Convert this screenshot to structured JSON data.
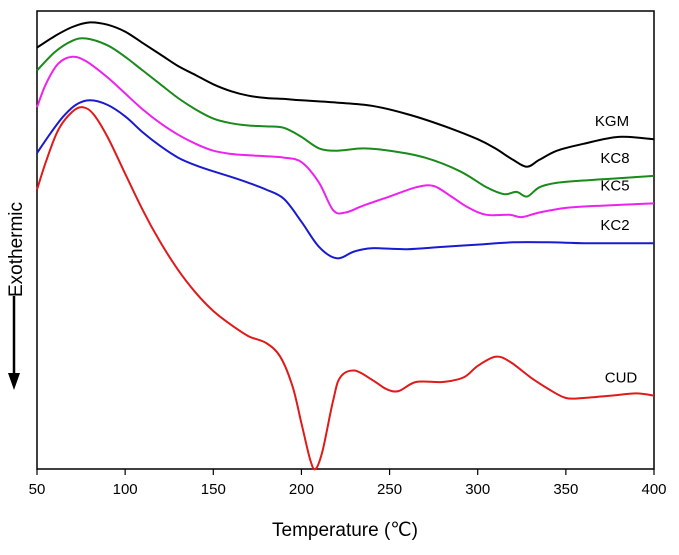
{
  "chart_data": {
    "type": "line",
    "xlabel": "Temperature (℃)",
    "ylabel": "Exothermic",
    "xlim": [
      50,
      400
    ],
    "x_ticks": [
      "50",
      "100",
      "150",
      "200",
      "250",
      "300",
      "350",
      "400"
    ],
    "y_ticks_shown": false,
    "grid": false,
    "legend": "labels placed at right end of curves",
    "y_units": "relative heat flow (arbitrary units, plot frame spans 0–100)",
    "ylim": [
      0,
      100
    ],
    "series": [
      {
        "name": "KGM",
        "color": "#000000",
        "points": [
          [
            50,
            92
          ],
          [
            60,
            94.5
          ],
          [
            70,
            96.5
          ],
          [
            80,
            97.5
          ],
          [
            90,
            97
          ],
          [
            100,
            95.5
          ],
          [
            110,
            93
          ],
          [
            120,
            90.5
          ],
          [
            130,
            88
          ],
          [
            140,
            86
          ],
          [
            150,
            84
          ],
          [
            160,
            82.5
          ],
          [
            170,
            81.5
          ],
          [
            180,
            81
          ],
          [
            190,
            80.8
          ],
          [
            200,
            80.5
          ],
          [
            220,
            80
          ],
          [
            240,
            79.3
          ],
          [
            260,
            77.5
          ],
          [
            280,
            75
          ],
          [
            300,
            72
          ],
          [
            310,
            70
          ],
          [
            320,
            67.5
          ],
          [
            328,
            66
          ],
          [
            335,
            67.5
          ],
          [
            345,
            69.5
          ],
          [
            360,
            71
          ],
          [
            380,
            72.5
          ],
          [
            400,
            72
          ]
        ]
      },
      {
        "name": "KC8",
        "color": "#1a8a1a",
        "points": [
          [
            50,
            87
          ],
          [
            60,
            91
          ],
          [
            70,
            93.5
          ],
          [
            78,
            94
          ],
          [
            90,
            92.5
          ],
          [
            100,
            90
          ],
          [
            110,
            87
          ],
          [
            120,
            84
          ],
          [
            130,
            81
          ],
          [
            140,
            78.5
          ],
          [
            150,
            76.5
          ],
          [
            160,
            75.5
          ],
          [
            170,
            75
          ],
          [
            180,
            74.8
          ],
          [
            190,
            74.5
          ],
          [
            200,
            72.5
          ],
          [
            210,
            70
          ],
          [
            220,
            69.5
          ],
          [
            235,
            70
          ],
          [
            250,
            69.5
          ],
          [
            270,
            68
          ],
          [
            290,
            65
          ],
          [
            305,
            61.5
          ],
          [
            315,
            60
          ],
          [
            322,
            60.5
          ],
          [
            328,
            59.5
          ],
          [
            335,
            61.5
          ],
          [
            345,
            62.5
          ],
          [
            360,
            63
          ],
          [
            380,
            63.5
          ],
          [
            400,
            64
          ]
        ]
      },
      {
        "name": "KC5",
        "color": "#ee22ee",
        "points": [
          [
            50,
            79
          ],
          [
            55,
            84
          ],
          [
            62,
            88.5
          ],
          [
            70,
            90
          ],
          [
            78,
            89
          ],
          [
            90,
            85.5
          ],
          [
            100,
            82
          ],
          [
            110,
            78.5
          ],
          [
            120,
            75.5
          ],
          [
            130,
            73
          ],
          [
            140,
            71
          ],
          [
            150,
            69.5
          ],
          [
            160,
            68.8
          ],
          [
            170,
            68.5
          ],
          [
            180,
            68.3
          ],
          [
            190,
            68
          ],
          [
            200,
            67
          ],
          [
            210,
            62.5
          ],
          [
            218,
            56.5
          ],
          [
            225,
            56
          ],
          [
            235,
            57.5
          ],
          [
            250,
            59.5
          ],
          [
            265,
            61.5
          ],
          [
            275,
            61.8
          ],
          [
            285,
            59.5
          ],
          [
            295,
            57
          ],
          [
            305,
            55.5
          ],
          [
            318,
            55.5
          ],
          [
            325,
            55
          ],
          [
            335,
            56
          ],
          [
            350,
            57
          ],
          [
            370,
            57.5
          ],
          [
            400,
            58
          ]
        ]
      },
      {
        "name": "KC2",
        "color": "#1a1ad0",
        "points": [
          [
            50,
            69
          ],
          [
            58,
            73.5
          ],
          [
            65,
            77
          ],
          [
            72,
            79.5
          ],
          [
            80,
            80.5
          ],
          [
            90,
            79.5
          ],
          [
            100,
            77
          ],
          [
            110,
            73.5
          ],
          [
            120,
            70.5
          ],
          [
            130,
            68
          ],
          [
            140,
            66.3
          ],
          [
            150,
            65
          ],
          [
            160,
            63.8
          ],
          [
            170,
            62.5
          ],
          [
            180,
            61
          ],
          [
            190,
            59
          ],
          [
            200,
            54
          ],
          [
            210,
            48.5
          ],
          [
            220,
            46
          ],
          [
            230,
            47.5
          ],
          [
            240,
            48.2
          ],
          [
            260,
            48
          ],
          [
            280,
            48.5
          ],
          [
            300,
            49
          ],
          [
            320,
            49.5
          ],
          [
            340,
            49.5
          ],
          [
            360,
            49.3
          ],
          [
            380,
            49.3
          ],
          [
            400,
            49.3
          ]
        ]
      },
      {
        "name": "CUD",
        "color": "#e01a1a",
        "points": [
          [
            50,
            61
          ],
          [
            55,
            67
          ],
          [
            62,
            74
          ],
          [
            70,
            78
          ],
          [
            76,
            79
          ],
          [
            82,
            77.5
          ],
          [
            90,
            72.5
          ],
          [
            100,
            64.5
          ],
          [
            110,
            56.5
          ],
          [
            120,
            49.5
          ],
          [
            130,
            43.5
          ],
          [
            140,
            38.5
          ],
          [
            150,
            34.5
          ],
          [
            160,
            31.5
          ],
          [
            170,
            29
          ],
          [
            180,
            27.5
          ],
          [
            188,
            24.5
          ],
          [
            195,
            18
          ],
          [
            200,
            10
          ],
          [
            205,
            2
          ],
          [
            208,
            0
          ],
          [
            212,
            4
          ],
          [
            218,
            15
          ],
          [
            222,
            20
          ],
          [
            230,
            21.5
          ],
          [
            240,
            19.5
          ],
          [
            248,
            17.5
          ],
          [
            255,
            17
          ],
          [
            265,
            19
          ],
          [
            280,
            19
          ],
          [
            292,
            20
          ],
          [
            300,
            22.5
          ],
          [
            310,
            24.5
          ],
          [
            318,
            23.5
          ],
          [
            330,
            20
          ],
          [
            340,
            17.5
          ],
          [
            350,
            15.5
          ],
          [
            360,
            15.5
          ],
          [
            375,
            16
          ],
          [
            390,
            16.5
          ],
          [
            400,
            16
          ]
        ]
      }
    ]
  }
}
